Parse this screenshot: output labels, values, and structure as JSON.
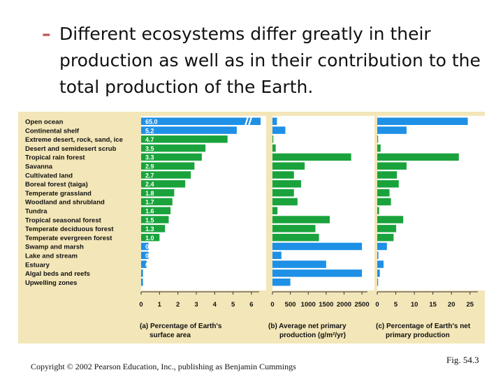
{
  "bullet": {
    "dash": "–",
    "text": "Different ecosystems differ greatly in their production as well as in their contribution to the total production of the Earth."
  },
  "footer": {
    "copyright": "Copyright © 2002 Pearson Education, Inc., publishing as Benjamin Cummings",
    "fig": "Fig. 54.3"
  },
  "colors": {
    "panel_bg": "#f3e6b8",
    "aquatic": "#1e90e6",
    "terrestrial": "#1aa33c",
    "axis": "#333333"
  },
  "chart_data": [
    {
      "type": "bar",
      "orientation": "horizontal",
      "title": "(a) Percentage of Earth's surface area",
      "categories": [
        "Open ocean",
        "Continental shelf",
        "Extreme desert, rock, sand, ice",
        "Desert and semidesert scrub",
        "Tropical rain forest",
        "Savanna",
        "Cultivated land",
        "Boreal forest (taiga)",
        "Temperate grassland",
        "Woodland and shrubland",
        "Tundra",
        "Tropical seasonal forest",
        "Temperate deciduous forest",
        "Temperate evergreen forest",
        "Swamp and marsh",
        "Lake and stream",
        "Estuary",
        "Algal beds and reefs",
        "Upwelling zones"
      ],
      "aquatic": [
        true,
        true,
        false,
        false,
        false,
        false,
        false,
        false,
        false,
        false,
        false,
        false,
        false,
        false,
        true,
        true,
        true,
        true,
        true
      ],
      "values": [
        65.0,
        5.2,
        4.7,
        3.5,
        3.3,
        2.9,
        2.7,
        2.4,
        1.8,
        1.7,
        1.6,
        1.5,
        1.3,
        1.0,
        0.4,
        0.4,
        0.3,
        0.1,
        0.1
      ],
      "value_labels": [
        "65.0",
        "5.2",
        "4.7",
        "3.5",
        "3.3",
        "2.9",
        "2.7",
        "2.4",
        "1.8",
        "1.7",
        "1.6",
        "1.5",
        "1.3",
        "1.0",
        "0.4",
        "0.4",
        "0.3",
        "0.1",
        "0.1"
      ],
      "xlim": [
        0,
        6.8
      ],
      "xticks": [
        0,
        1,
        2,
        3,
        4,
        5,
        6
      ],
      "axis_break": true,
      "title_lines": [
        "(a) Percentage of Earth's",
        "surface area"
      ]
    },
    {
      "type": "bar",
      "orientation": "horizontal",
      "title": "(b) Average net primary production (g/m²/yr)",
      "title_lines": [
        "(b) Average net primary",
        "production (g/m²/yr)"
      ],
      "values": [
        125,
        360,
        3,
        90,
        2200,
        900,
        600,
        800,
        600,
        700,
        140,
        1600,
        1200,
        1300,
        2500,
        250,
        1500,
        2500,
        500
      ],
      "xlim": [
        0,
        2850
      ],
      "xticks": [
        0,
        500,
        1000,
        1500,
        2000,
        2500
      ]
    },
    {
      "type": "bar",
      "orientation": "horizontal",
      "title": "(c) Percentage of Earth's net primary production",
      "title_lines": [
        "(c) Percentage of Earth's net",
        "primary production"
      ],
      "values": [
        24.4,
        7.9,
        0.04,
        0.9,
        22.0,
        7.9,
        5.3,
        5.8,
        3.3,
        3.7,
        0.5,
        7.0,
        5.1,
        4.4,
        2.6,
        0.3,
        1.7,
        0.7,
        0.2
      ],
      "xlim": [
        0,
        29
      ],
      "xticks": [
        0,
        5,
        10,
        15,
        20,
        25
      ]
    }
  ]
}
